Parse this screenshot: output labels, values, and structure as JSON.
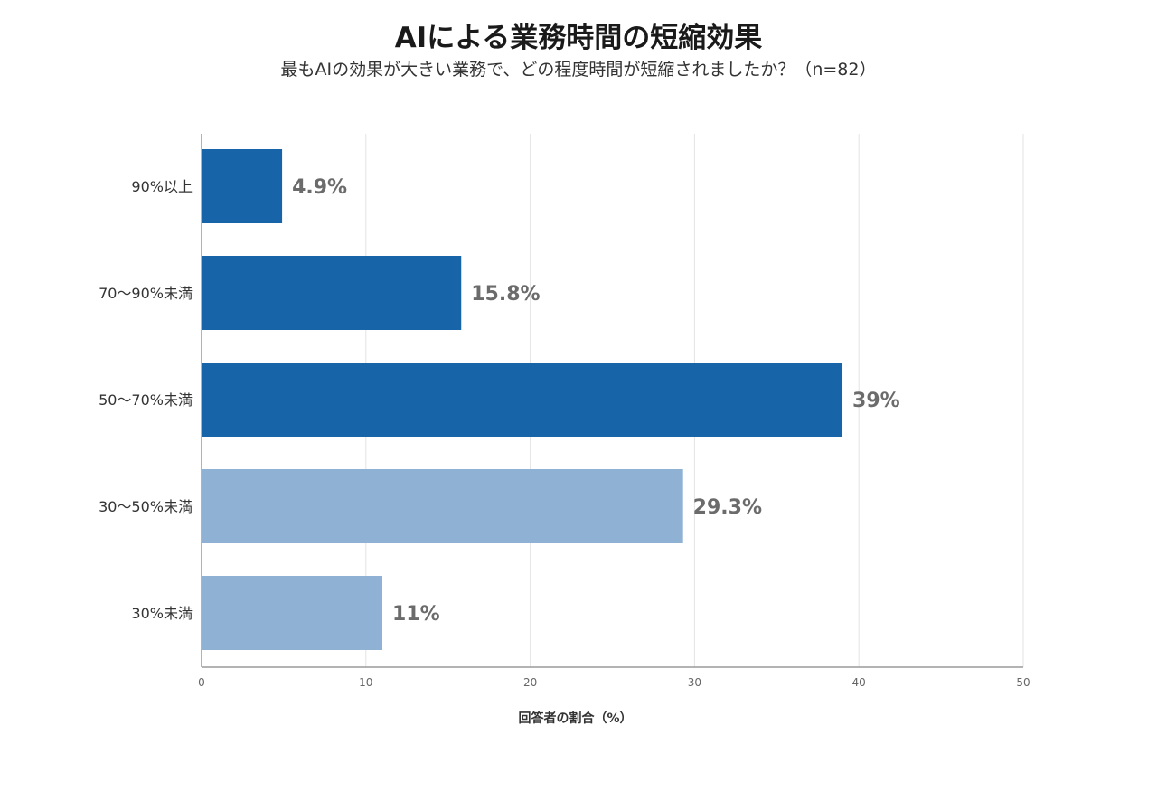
{
  "chart_data": {
    "type": "bar",
    "orientation": "horizontal",
    "title": "AIによる業務時間の短縮効果",
    "subtitle": "最もAIの効果が大きい業務で、どの程度時間が短縮されましたか？（n=82）",
    "categories": [
      "90%以上",
      "70〜90%未満",
      "50〜70%未満",
      "30〜50%未満",
      "30%未満"
    ],
    "values": [
      4.9,
      15.8,
      39,
      29.3,
      11
    ],
    "data_labels": [
      "4.9%",
      "15.8%",
      "39%",
      "29.3%",
      "11%"
    ],
    "bar_colors": [
      "#1764a8",
      "#1764a8",
      "#1764a8",
      "#8eb1d4",
      "#8eb1d4"
    ],
    "xlabel": "回答者の割合（%）",
    "ylabel": "",
    "xlim": [
      0,
      50
    ],
    "xticks": [
      0,
      10,
      20,
      30,
      40,
      50
    ],
    "grid": true,
    "legend": "none"
  }
}
